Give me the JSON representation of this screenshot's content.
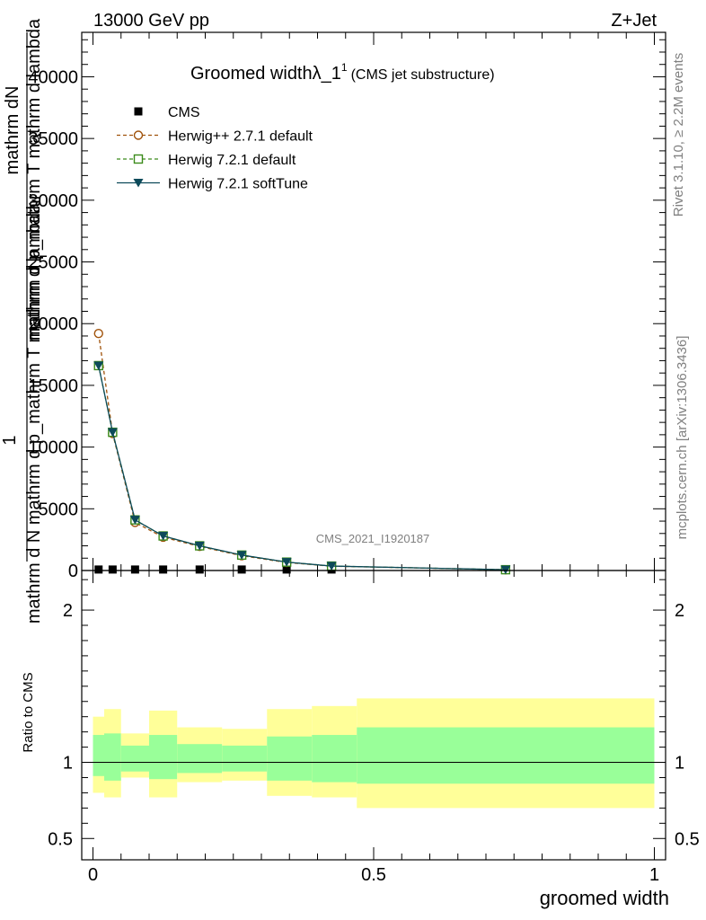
{
  "header": {
    "left": "13000 GeV pp",
    "right": "Z+Jet"
  },
  "side": {
    "rivet": "Rivet 3.1.10, ≥ 2.2M events",
    "mcplots": "mcplots.cern.ch [arXiv:1306.3436]"
  },
  "chart_data": [
    {
      "type": "line",
      "title": "Groomed widthλ_1",
      "title_sup": "1",
      "title_suffix": "(CMS jet substructure)",
      "watermark": "CMS_2021_I1920187",
      "ylabel_top": "mathrm dN",
      "ylabel_mid": "mathrm d p_mathrm T mathrm d lambda",
      "ylabel_one": "1",
      "ylabel_bottom": "mathrm d N mathrm d p_mathrm T mathrm d lambda",
      "xlim": [
        -0.02,
        1.02
      ],
      "ylim": [
        0,
        43600
      ],
      "yticks": [
        0,
        5000,
        10000,
        15000,
        20000,
        25000,
        30000,
        35000,
        40000
      ],
      "ytick_labels": [
        "0",
        "5000",
        "10000",
        "15000",
        "20000",
        "25000",
        "30000",
        "35000",
        "40000"
      ],
      "legend_position": "top-left",
      "x": [
        0.01,
        0.035,
        0.075,
        0.125,
        0.19,
        0.265,
        0.345,
        0.425,
        0.735
      ],
      "series": [
        {
          "name": "CMS",
          "color": "#000000",
          "marker": "square",
          "values": [
            80,
            80,
            80,
            80,
            80,
            80,
            80,
            80,
            80
          ]
        },
        {
          "name": "Herwig++ 2.7.1 default",
          "color": "#a0520a",
          "marker": "circle",
          "dash": true,
          "values": [
            19200,
            11100,
            3900,
            2700,
            1950,
            1200,
            650,
            350,
            60
          ]
        },
        {
          "name": "Herwig 7.2.1 default",
          "color": "#3a8a1a",
          "marker": "square-open",
          "dash": true,
          "values": [
            16600,
            11200,
            4100,
            2800,
            2000,
            1250,
            680,
            360,
            65
          ]
        },
        {
          "name": "Herwig 7.2.1 softTune",
          "color": "#0d4a5a",
          "marker": "triangle-down",
          "dash": false,
          "values": [
            16600,
            11200,
            4100,
            2800,
            2000,
            1250,
            680,
            360,
            65
          ]
        }
      ]
    },
    {
      "type": "area",
      "ylabel": "Ratio to CMS",
      "xlabel": "groomed width",
      "xlim": [
        -0.02,
        1.02
      ],
      "ylim": [
        0.36,
        2.26
      ],
      "yticks": [
        0.5,
        1,
        2
      ],
      "ytick_labels": [
        "0.5",
        "1",
        "2"
      ],
      "xticks": [
        0,
        0.5,
        1
      ],
      "xtick_labels": [
        "0",
        "0.5",
        "1"
      ],
      "band_colors": {
        "outer": "#ffff99",
        "inner": "#99ff99"
      },
      "bins": [
        {
          "lo": 0.0,
          "hi": 0.02,
          "inner": [
            0.91,
            1.18
          ],
          "outer": [
            0.8,
            1.3
          ]
        },
        {
          "lo": 0.02,
          "hi": 0.05,
          "inner": [
            0.88,
            1.19
          ],
          "outer": [
            0.77,
            1.35
          ]
        },
        {
          "lo": 0.05,
          "hi": 0.1,
          "inner": [
            0.94,
            1.11
          ],
          "outer": [
            0.9,
            1.19
          ]
        },
        {
          "lo": 0.1,
          "hi": 0.15,
          "inner": [
            0.89,
            1.18
          ],
          "outer": [
            0.77,
            1.34
          ]
        },
        {
          "lo": 0.15,
          "hi": 0.23,
          "inner": [
            0.93,
            1.12
          ],
          "outer": [
            0.87,
            1.23
          ]
        },
        {
          "lo": 0.23,
          "hi": 0.31,
          "inner": [
            0.94,
            1.11
          ],
          "outer": [
            0.88,
            1.22
          ]
        },
        {
          "lo": 0.31,
          "hi": 0.39,
          "inner": [
            0.88,
            1.17
          ],
          "outer": [
            0.78,
            1.35
          ]
        },
        {
          "lo": 0.39,
          "hi": 0.47,
          "inner": [
            0.87,
            1.18
          ],
          "outer": [
            0.77,
            1.37
          ]
        },
        {
          "lo": 0.47,
          "hi": 1.0,
          "inner": [
            0.86,
            1.23
          ],
          "outer": [
            0.7,
            1.42
          ]
        }
      ]
    }
  ]
}
